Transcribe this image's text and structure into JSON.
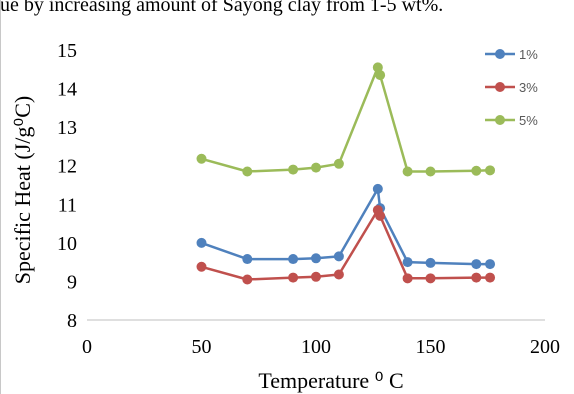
{
  "caption_text": "ue by increasing amount of Sayong clay from 1-5 wt%.",
  "chart_data": {
    "type": "line",
    "title": "",
    "xlabel": "Temperature ⁰ C",
    "ylabel": "Specific Heat (J/g⁰C)",
    "xlim": [
      0,
      200
    ],
    "ylim": [
      8,
      15
    ],
    "x_ticks": [
      "0",
      "50",
      "100",
      "150",
      "200"
    ],
    "y_ticks": [
      "8",
      "9",
      "10",
      "11",
      "12",
      "13",
      "14",
      "15"
    ],
    "grid": false,
    "legend": "top-right",
    "series": [
      {
        "name": "1%",
        "color": "#4f81bd",
        "x": [
          50,
          70,
          90,
          100,
          110,
          127,
          128,
          140,
          150,
          170,
          176
        ],
        "y": [
          10.0,
          9.58,
          9.58,
          9.6,
          9.65,
          11.4,
          10.9,
          9.5,
          9.48,
          9.45,
          9.45
        ]
      },
      {
        "name": "3%",
        "color": "#c0504d",
        "x": [
          50,
          70,
          90,
          100,
          110,
          127,
          128,
          140,
          150,
          170,
          176
        ],
        "y": [
          9.38,
          9.05,
          9.1,
          9.12,
          9.18,
          10.85,
          10.7,
          9.08,
          9.08,
          9.1,
          9.1
        ]
      },
      {
        "name": "5%",
        "color": "#9bbb59",
        "x": [
          50,
          70,
          90,
          100,
          110,
          127,
          128,
          140,
          150,
          170,
          176
        ],
        "y": [
          12.18,
          11.85,
          11.9,
          11.95,
          12.05,
          14.55,
          14.35,
          11.85,
          11.85,
          11.87,
          11.88
        ]
      }
    ]
  }
}
